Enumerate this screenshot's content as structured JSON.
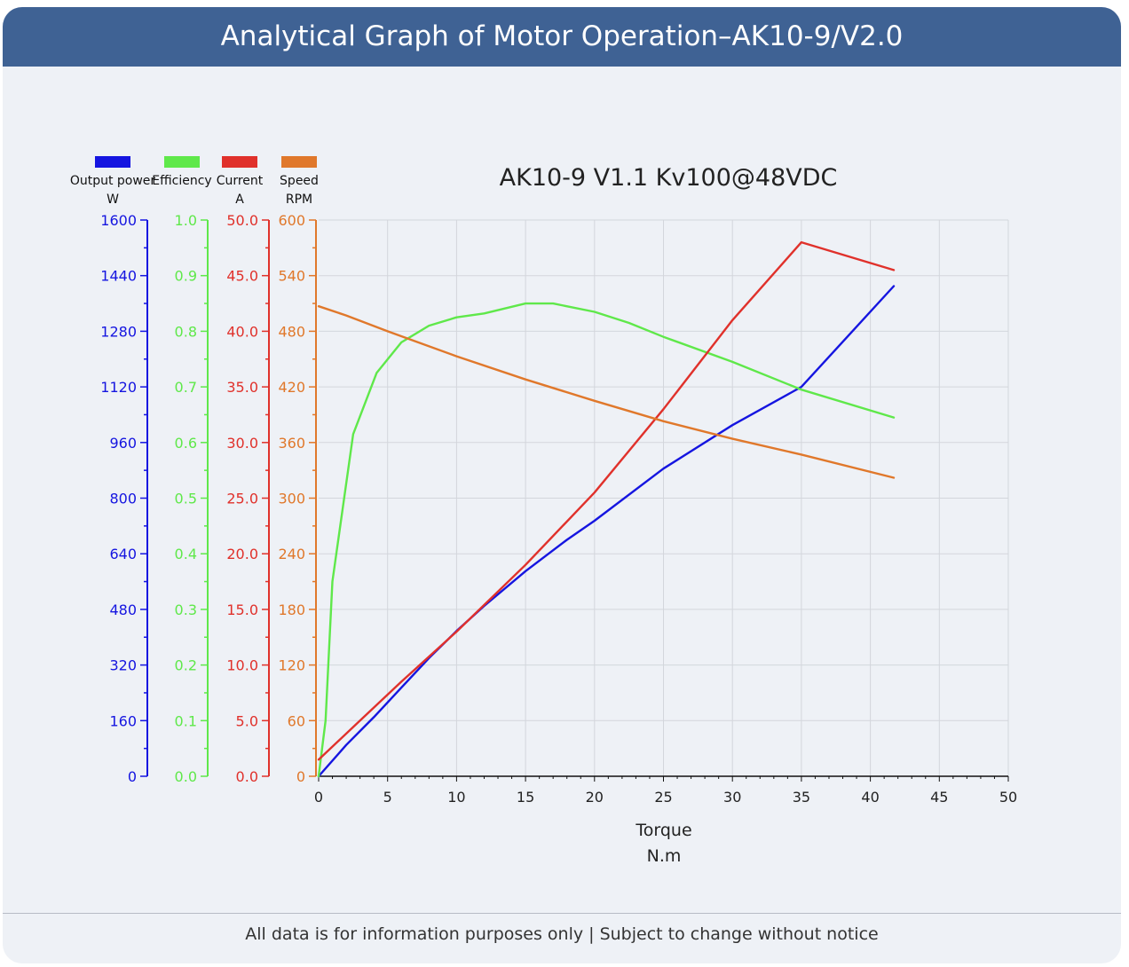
{
  "page": {
    "header_title": "Analytical Graph of Motor Operation–AK10-9/V2.0",
    "footer_note": "All data is for information purposes only | Subject to change without notice"
  },
  "colors": {
    "header_bg": "#3f6294",
    "card_bg": "#eef1f6",
    "power": "#1515e0",
    "efficiency": "#5fe84a",
    "current": "#e0312b",
    "speed": "#e0782b"
  },
  "chart_data": {
    "type": "line",
    "title": "AK10-9 V1.1 Kv100@48VDC",
    "xlabel": "Torque",
    "xunit": "N.m",
    "xlim": [
      0,
      50
    ],
    "xticks": [
      "0",
      "5",
      "10",
      "15",
      "20",
      "25",
      "30",
      "35",
      "40",
      "45",
      "50"
    ],
    "grid": true,
    "legend_position": "top-left",
    "axes": [
      {
        "key": "power",
        "label": "Output power",
        "unit": "W",
        "ylim": [
          0,
          1600
        ],
        "ticks": [
          "0",
          "160",
          "320",
          "480",
          "640",
          "800",
          "960",
          "1120",
          "1280",
          "1440",
          "1600"
        ]
      },
      {
        "key": "efficiency",
        "label": "Efficiency",
        "unit": "",
        "ylim": [
          0,
          1
        ],
        "ticks": [
          "0.0",
          "0.1",
          "0.2",
          "0.3",
          "0.4",
          "0.5",
          "0.6",
          "0.7",
          "0.8",
          "0.9",
          "1.0"
        ]
      },
      {
        "key": "current",
        "label": "Current",
        "unit": "A",
        "ylim": [
          0,
          50
        ],
        "ticks": [
          "0.0",
          "5.0",
          "10.0",
          "15.0",
          "20.0",
          "25.0",
          "30.0",
          "35.0",
          "40.0",
          "45.0",
          "50.0"
        ]
      },
      {
        "key": "speed",
        "label": "Speed",
        "unit": "RPM",
        "ylim": [
          0,
          600
        ],
        "ticks": [
          "0",
          "60",
          "120",
          "180",
          "240",
          "300",
          "360",
          "420",
          "480",
          "540",
          "600"
        ]
      }
    ],
    "series": [
      {
        "name": "Output power",
        "axis": "power",
        "x": [
          0,
          2,
          4,
          6,
          8,
          10,
          12,
          15,
          18,
          20,
          25,
          30,
          35,
          41.7
        ],
        "y": [
          0,
          90,
          170,
          255,
          340,
          418,
          490,
          590,
          680,
          735,
          885,
          1010,
          1120,
          1410
        ]
      },
      {
        "name": "Efficiency",
        "axis": "efficiency",
        "x": [
          0,
          0.5,
          1,
          2.5,
          4.2,
          6,
          8,
          10,
          12,
          15,
          17,
          20,
          22.5,
          25,
          30,
          35,
          41.7
        ],
        "y": [
          0,
          0.1,
          0.35,
          0.615,
          0.725,
          0.78,
          0.81,
          0.825,
          0.832,
          0.85,
          0.85,
          0.835,
          0.815,
          0.79,
          0.745,
          0.695,
          0.645
        ]
      },
      {
        "name": "Current",
        "axis": "current",
        "x": [
          0,
          3,
          6,
          10,
          15,
          20,
          25,
          30,
          35,
          41.7
        ],
        "y": [
          1.5,
          5.0,
          8.5,
          13.0,
          19.0,
          25.5,
          33.0,
          41.0,
          48.0,
          45.5
        ]
      },
      {
        "name": "Speed",
        "axis": "speed",
        "x": [
          0,
          2,
          5,
          10,
          15,
          20,
          25,
          30,
          35,
          41.7
        ],
        "y": [
          507,
          497,
          480,
          453,
          428,
          405,
          383,
          364,
          347,
          322
        ]
      }
    ]
  }
}
